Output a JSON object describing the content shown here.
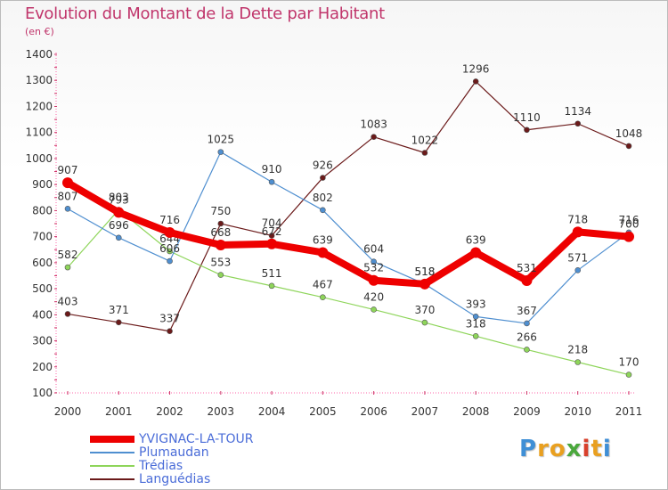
{
  "title": "Evolution du Montant de la Dette par Habitant",
  "subtitle": "(en €)",
  "chart_data": {
    "type": "line",
    "x": [
      "2000",
      "2001",
      "2002",
      "2003",
      "2004",
      "2005",
      "2006",
      "2007",
      "2008",
      "2009",
      "2010",
      "2011"
    ],
    "ylim": [
      100,
      1400
    ],
    "yticks": [
      100,
      200,
      300,
      400,
      500,
      600,
      700,
      800,
      900,
      1000,
      1100,
      1200,
      1300,
      1400
    ],
    "grid": false,
    "legend_position": "bottom-left",
    "series": [
      {
        "name": "YVIGNAC-LA-TOUR",
        "color": "#ee0000",
        "values": [
          907,
          793,
          716,
          668,
          672,
          639,
          532,
          518,
          639,
          531,
          718,
          700
        ]
      },
      {
        "name": "Plumaudan",
        "color": "#4f8fd0",
        "values": [
          807,
          696,
          606,
          1025,
          910,
          802,
          604,
          518,
          393,
          367,
          571,
          716
        ]
      },
      {
        "name": "Trédias",
        "color": "#8ed55a",
        "values": [
          582,
          803,
          644,
          553,
          511,
          467,
          420,
          370,
          318,
          266,
          218,
          170
        ]
      },
      {
        "name": "Languédias",
        "color": "#6b1a1a",
        "values": [
          403,
          371,
          337,
          750,
          704,
          926,
          1083,
          1022,
          1296,
          1110,
          1134,
          1048
        ]
      }
    ]
  },
  "logo": {
    "letters": [
      "P",
      "r",
      "o",
      "x",
      "i",
      "t",
      "i"
    ],
    "colors": [
      "#3f8fd6",
      "#e9a020",
      "#e9a020",
      "#4aa83c",
      "#d8402c",
      "#e9a020",
      "#3f8fd6"
    ]
  }
}
